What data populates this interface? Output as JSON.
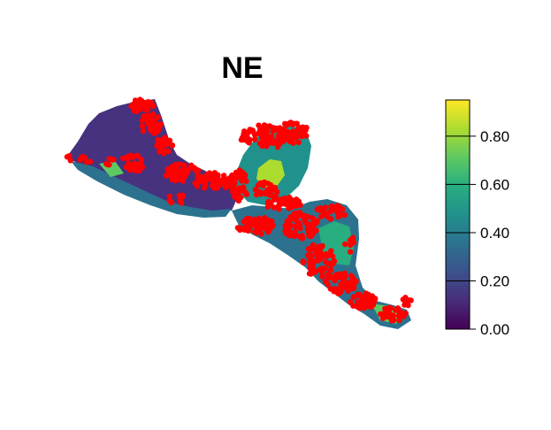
{
  "title": "NE",
  "legend": {
    "ticks": [
      {
        "value": 0.0,
        "label": "0.00"
      },
      {
        "value": 0.2,
        "label": "0.20"
      },
      {
        "value": 0.4,
        "label": "0.40"
      },
      {
        "value": 0.6,
        "label": "0.60"
      },
      {
        "value": 0.8,
        "label": "0.80"
      }
    ],
    "range": [
      0,
      0.95
    ],
    "palette": [
      "#440154",
      "#472d7b",
      "#3b528b",
      "#2c728e",
      "#21918c",
      "#28ae80",
      "#5ec962",
      "#addc30",
      "#fde725"
    ]
  },
  "colors": {
    "points": "#ff0000",
    "background": "#ffffff"
  },
  "layers": {
    "raster": "habitat-suitability-raster",
    "points": "occurrence-points"
  }
}
